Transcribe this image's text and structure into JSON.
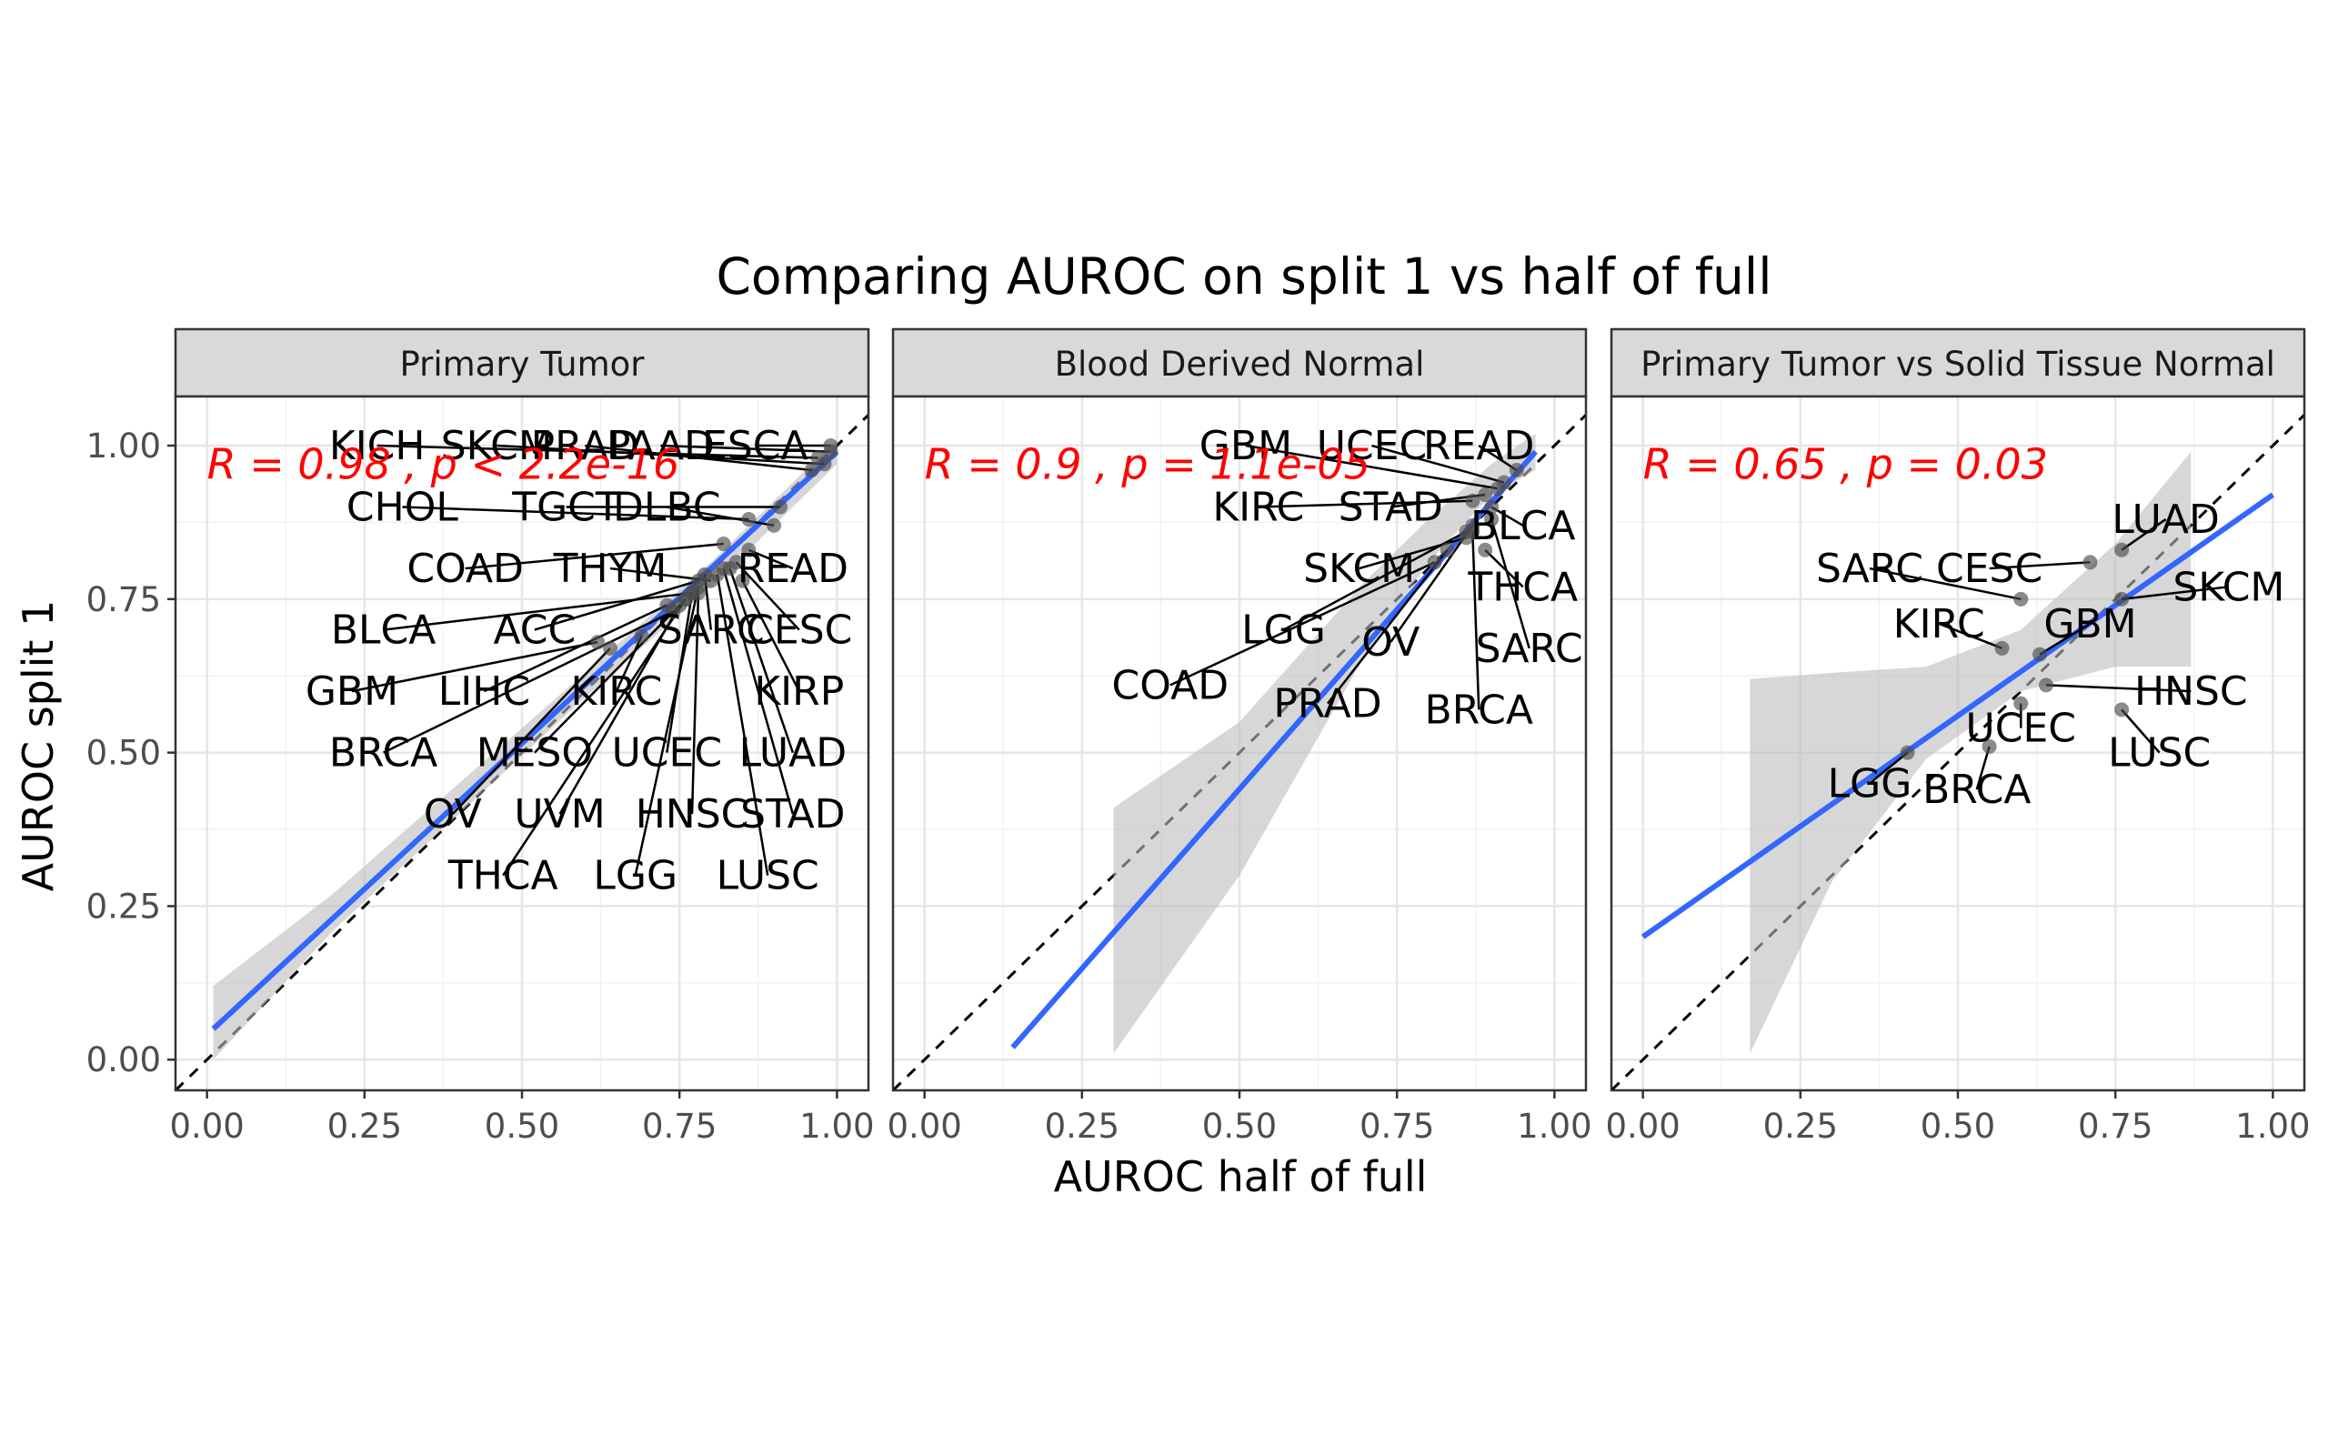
{
  "chart_data": {
    "type": "scatter",
    "title": "Comparing AUROC on split 1 vs half of full",
    "xlabel": "AUROC half of full",
    "ylabel": "AUROC split 1",
    "xlim": [
      -0.05,
      1.05
    ],
    "ylim": [
      -0.05,
      1.08
    ],
    "x_ticks": [
      "0.00",
      "0.25",
      "0.50",
      "0.75",
      "1.00"
    ],
    "y_ticks": [
      "0.00",
      "0.25",
      "0.50",
      "0.75",
      "1.00"
    ],
    "grid": true,
    "reference_line": "identity (dashed)",
    "fit": "linear regression with confidence band",
    "colors": {
      "points": "#4d4d4d",
      "fit_line": "#3366ff",
      "band": "#bdbdbd",
      "stat_text": "#ff0000",
      "strip": "#d9d9d9"
    },
    "panels": [
      {
        "strip": "Primary Tumor",
        "stat_label": "R = 0.98 , p < 2.2e-16",
        "fit": {
          "x": [
            0.01,
            1.0
          ],
          "y": [
            0.05,
            0.99
          ]
        },
        "band": {
          "x": [
            0.01,
            0.2,
            0.4,
            0.6,
            0.8,
            1.0
          ],
          "upper": [
            0.12,
            0.27,
            0.45,
            0.63,
            0.81,
            1.01
          ],
          "lower": [
            0.0,
            0.21,
            0.4,
            0.59,
            0.77,
            0.97
          ]
        },
        "points": [
          {
            "label": "KICH",
            "x": 0.97,
            "y": 0.98,
            "lx": 0.27,
            "ly": 1.0
          },
          {
            "label": "SKCM",
            "x": 0.98,
            "y": 0.97,
            "lx": 0.46,
            "ly": 1.0
          },
          {
            "label": "PRAD",
            "x": 0.96,
            "y": 0.96,
            "lx": 0.6,
            "ly": 1.0
          },
          {
            "label": "PAAD",
            "x": 0.99,
            "y": 0.99,
            "lx": 0.72,
            "ly": 1.0
          },
          {
            "label": "ESCA",
            "x": 0.99,
            "y": 1.0,
            "lx": 0.87,
            "ly": 1.0
          },
          {
            "label": "CHOL",
            "x": 0.86,
            "y": 0.88,
            "lx": 0.31,
            "ly": 0.9
          },
          {
            "label": "TGCT",
            "x": 0.91,
            "y": 0.9,
            "lx": 0.57,
            "ly": 0.9
          },
          {
            "label": "DLBC",
            "x": 0.9,
            "y": 0.87,
            "lx": 0.73,
            "ly": 0.9
          },
          {
            "label": "COAD",
            "x": 0.82,
            "y": 0.84,
            "lx": 0.41,
            "ly": 0.8
          },
          {
            "label": "THYM",
            "x": 0.8,
            "y": 0.78,
            "lx": 0.64,
            "ly": 0.8
          },
          {
            "label": "READ",
            "x": 0.86,
            "y": 0.83,
            "lx": 0.93,
            "ly": 0.8
          },
          {
            "label": "BLCA",
            "x": 0.77,
            "y": 0.76,
            "lx": 0.28,
            "ly": 0.7
          },
          {
            "label": "ACC",
            "x": 0.78,
            "y": 0.78,
            "lx": 0.52,
            "ly": 0.7
          },
          {
            "label": "SARC",
            "x": 0.79,
            "y": 0.79,
            "lx": 0.8,
            "ly": 0.7
          },
          {
            "label": "CESC",
            "x": 0.84,
            "y": 0.81,
            "lx": 0.94,
            "ly": 0.7
          },
          {
            "label": "GBM",
            "x": 0.62,
            "y": 0.68,
            "lx": 0.23,
            "ly": 0.6
          },
          {
            "label": "LIHC",
            "x": 0.73,
            "y": 0.74,
            "lx": 0.44,
            "ly": 0.6
          },
          {
            "label": "KIRC",
            "x": 0.69,
            "y": 0.69,
            "lx": 0.65,
            "ly": 0.6
          },
          {
            "label": "KIRP",
            "x": 0.85,
            "y": 0.78,
            "lx": 0.94,
            "ly": 0.6
          },
          {
            "label": "BRCA",
            "x": 0.74,
            "y": 0.73,
            "lx": 0.28,
            "ly": 0.5
          },
          {
            "label": "MESO",
            "x": 0.76,
            "y": 0.75,
            "lx": 0.52,
            "ly": 0.5
          },
          {
            "label": "UCEC",
            "x": 0.77,
            "y": 0.76,
            "lx": 0.73,
            "ly": 0.5
          },
          {
            "label": "LUAD",
            "x": 0.83,
            "y": 0.8,
            "lx": 0.93,
            "ly": 0.5
          },
          {
            "label": "OV",
            "x": 0.64,
            "y": 0.67,
            "lx": 0.39,
            "ly": 0.4
          },
          {
            "label": "UVM",
            "x": 0.75,
            "y": 0.74,
            "lx": 0.56,
            "ly": 0.4
          },
          {
            "label": "HNSC",
            "x": 0.78,
            "y": 0.76,
            "lx": 0.77,
            "ly": 0.4
          },
          {
            "label": "STAD",
            "x": 0.82,
            "y": 0.8,
            "lx": 0.93,
            "ly": 0.4
          },
          {
            "label": "THCA",
            "x": 0.76,
            "y": 0.75,
            "lx": 0.47,
            "ly": 0.3
          },
          {
            "label": "LGG",
            "x": 0.78,
            "y": 0.77,
            "lx": 0.68,
            "ly": 0.3
          },
          {
            "label": "LUSC",
            "x": 0.81,
            "y": 0.79,
            "lx": 0.89,
            "ly": 0.3
          }
        ]
      },
      {
        "strip": "Blood Derived Normal",
        "stat_label": "R = 0.9 , p = 1.1e-05",
        "fit": {
          "x": [
            0.14,
            0.97
          ],
          "y": [
            0.02,
            0.99
          ]
        },
        "band": {
          "x": [
            0.3,
            0.5,
            0.7,
            0.8,
            0.9,
            0.97
          ],
          "upper": [
            0.41,
            0.55,
            0.78,
            0.88,
            0.97,
            1.02
          ],
          "lower": [
            0.01,
            0.3,
            0.66,
            0.81,
            0.92,
            0.96
          ]
        },
        "points": [
          {
            "label": "GBM",
            "x": 0.91,
            "y": 0.93,
            "lx": 0.51,
            "ly": 1.0
          },
          {
            "label": "UCEC",
            "x": 0.92,
            "y": 0.94,
            "lx": 0.71,
            "ly": 1.0
          },
          {
            "label": "READ",
            "x": 0.94,
            "y": 0.96,
            "lx": 0.88,
            "ly": 1.0
          },
          {
            "label": "KIRC",
            "x": 0.87,
            "y": 0.91,
            "lx": 0.53,
            "ly": 0.9
          },
          {
            "label": "STAD",
            "x": 0.89,
            "y": 0.92,
            "lx": 0.74,
            "ly": 0.9
          },
          {
            "label": "BLCA",
            "x": 0.9,
            "y": 0.9,
            "lx": 0.95,
            "ly": 0.87
          },
          {
            "label": "SKCM",
            "x": 0.86,
            "y": 0.85,
            "lx": 0.69,
            "ly": 0.8
          },
          {
            "label": "THCA",
            "x": 0.89,
            "y": 0.83,
            "lx": 0.95,
            "ly": 0.77
          },
          {
            "label": "LGG",
            "x": 0.86,
            "y": 0.86,
            "lx": 0.57,
            "ly": 0.7
          },
          {
            "label": "OV",
            "x": 0.87,
            "y": 0.87,
            "lx": 0.74,
            "ly": 0.68
          },
          {
            "label": "SARC",
            "x": 0.9,
            "y": 0.88,
            "lx": 0.96,
            "ly": 0.67
          },
          {
            "label": "COAD",
            "x": 0.81,
            "y": 0.81,
            "lx": 0.39,
            "ly": 0.61
          },
          {
            "label": "PRAD",
            "x": 0.83,
            "y": 0.83,
            "lx": 0.64,
            "ly": 0.58
          },
          {
            "label": "BRCA",
            "x": 0.87,
            "y": 0.86,
            "lx": 0.88,
            "ly": 0.57
          }
        ]
      },
      {
        "strip": "Primary Tumor vs Solid Tissue Normal",
        "stat_label": "R = 0.65 , p = 0.03",
        "fit": {
          "x": [
            0.0,
            1.0
          ],
          "y": [
            0.2,
            0.92
          ]
        },
        "band": {
          "x": [
            0.17,
            0.3,
            0.45,
            0.6,
            0.75,
            0.87
          ],
          "upper": [
            0.62,
            0.63,
            0.64,
            0.7,
            0.84,
            0.99
          ],
          "lower": [
            0.01,
            0.29,
            0.49,
            0.6,
            0.64,
            0.64
          ]
        },
        "points": [
          {
            "label": "LUAD",
            "x": 0.76,
            "y": 0.83,
            "lx": 0.83,
            "ly": 0.88
          },
          {
            "label": "SARC",
            "x": 0.6,
            "y": 0.75,
            "lx": 0.36,
            "ly": 0.8
          },
          {
            "label": "CESC",
            "x": 0.71,
            "y": 0.81,
            "lx": 0.55,
            "ly": 0.8
          },
          {
            "label": "SKCM",
            "x": 0.76,
            "y": 0.75,
            "lx": 0.93,
            "ly": 0.77
          },
          {
            "label": "KIRC",
            "x": 0.57,
            "y": 0.67,
            "lx": 0.47,
            "ly": 0.71
          },
          {
            "label": "GBM",
            "x": 0.63,
            "y": 0.66,
            "lx": 0.71,
            "ly": 0.71
          },
          {
            "label": "HNSC",
            "x": 0.64,
            "y": 0.61,
            "lx": 0.87,
            "ly": 0.6
          },
          {
            "label": "UCEC",
            "x": 0.6,
            "y": 0.58,
            "lx": 0.6,
            "ly": 0.54
          },
          {
            "label": "LUSC",
            "x": 0.76,
            "y": 0.57,
            "lx": 0.82,
            "ly": 0.5
          },
          {
            "label": "LGG",
            "x": 0.42,
            "y": 0.5,
            "lx": 0.36,
            "ly": 0.45
          },
          {
            "label": "BRCA",
            "x": 0.55,
            "y": 0.51,
            "lx": 0.53,
            "ly": 0.44
          }
        ]
      }
    ]
  }
}
